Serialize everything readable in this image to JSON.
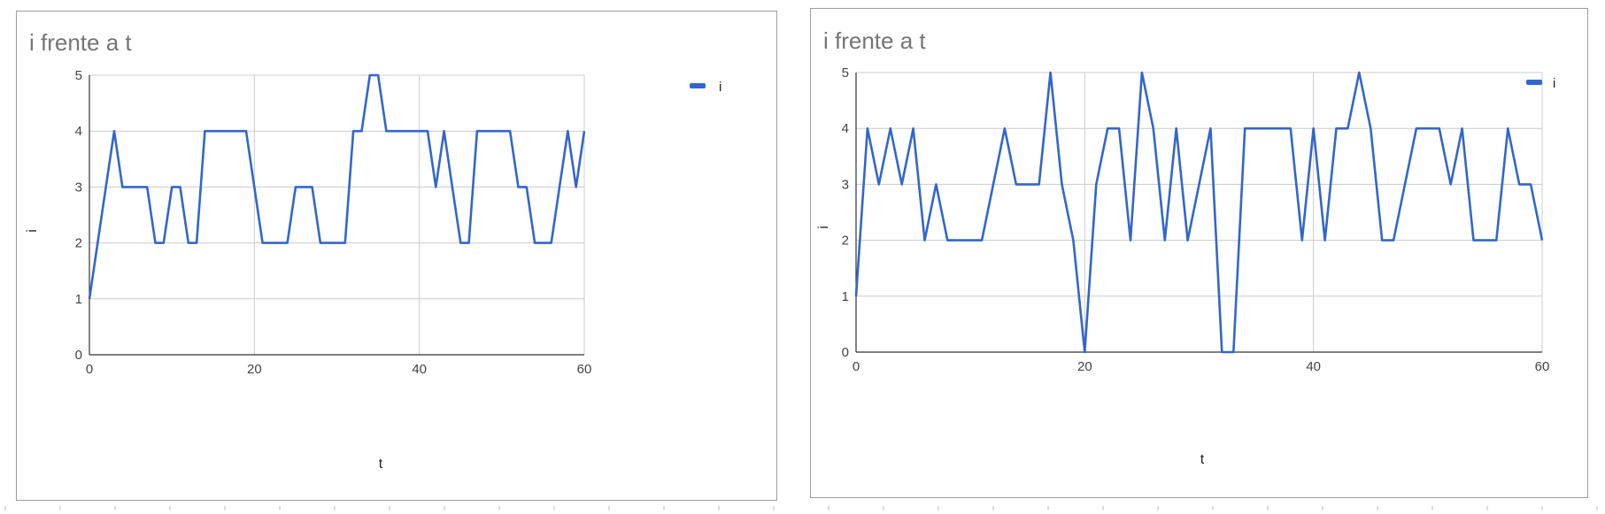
{
  "colors": {
    "series": "#3366cc"
  },
  "chart_data": [
    {
      "type": "line",
      "title": "i frente a t",
      "xlabel": "t",
      "ylabel": "i",
      "xlim": [
        0,
        60
      ],
      "ylim": [
        0,
        5
      ],
      "xticks": [
        0,
        20,
        40,
        60
      ],
      "yticks": [
        0,
        1,
        2,
        3,
        4,
        5
      ],
      "grid": true,
      "legend_position": "right",
      "series": [
        {
          "name": "i",
          "x": [
            0,
            1,
            2,
            3,
            4,
            5,
            6,
            7,
            8,
            9,
            10,
            11,
            12,
            13,
            14,
            15,
            16,
            17,
            18,
            19,
            20,
            21,
            22,
            23,
            24,
            25,
            26,
            27,
            28,
            29,
            30,
            31,
            32,
            33,
            34,
            35,
            36,
            37,
            38,
            39,
            40,
            41,
            42,
            43,
            44,
            45,
            46,
            47,
            48,
            49,
            50,
            51,
            52,
            53,
            54,
            55,
            56,
            57,
            58,
            59,
            60
          ],
          "y": [
            1,
            2,
            3,
            4,
            3,
            3,
            3,
            3,
            2,
            2,
            3,
            3,
            2,
            2,
            4,
            4,
            4,
            4,
            4,
            4,
            3,
            2,
            2,
            2,
            2,
            3,
            3,
            3,
            2,
            2,
            2,
            2,
            4,
            4,
            5,
            5,
            4,
            4,
            4,
            4,
            4,
            4,
            3,
            4,
            3,
            2,
            2,
            4,
            4,
            4,
            4,
            4,
            3,
            3,
            2,
            2,
            2,
            3,
            4,
            3,
            4
          ]
        }
      ]
    },
    {
      "type": "line",
      "title": "i frente a t",
      "xlabel": "t",
      "ylabel": "i",
      "xlim": [
        0,
        60
      ],
      "ylim": [
        0,
        5
      ],
      "xticks": [
        0,
        20,
        40,
        60
      ],
      "yticks": [
        0,
        1,
        2,
        3,
        4,
        5
      ],
      "grid": true,
      "legend_position": "right",
      "series": [
        {
          "name": "i",
          "x": [
            0,
            1,
            2,
            3,
            4,
            5,
            6,
            7,
            8,
            9,
            10,
            11,
            12,
            13,
            14,
            15,
            16,
            17,
            18,
            19,
            20,
            21,
            22,
            23,
            24,
            25,
            26,
            27,
            28,
            29,
            30,
            31,
            32,
            33,
            34,
            35,
            36,
            37,
            38,
            39,
            40,
            41,
            42,
            43,
            44,
            45,
            46,
            47,
            48,
            49,
            50,
            51,
            52,
            53,
            54,
            55,
            56,
            57,
            58,
            59,
            60
          ],
          "y": [
            1,
            4,
            3,
            4,
            3,
            4,
            2,
            3,
            2,
            2,
            2,
            2,
            3,
            4,
            3,
            3,
            3,
            5,
            3,
            2,
            0,
            3,
            4,
            4,
            2,
            5,
            4,
            2,
            4,
            2,
            3,
            4,
            0,
            0,
            4,
            4,
            4,
            4,
            4,
            2,
            4,
            2,
            4,
            4,
            5,
            4,
            2,
            2,
            3,
            4,
            4,
            4,
            3,
            4,
            2,
            2,
            2,
            4,
            3,
            3,
            2
          ]
        }
      ]
    }
  ]
}
